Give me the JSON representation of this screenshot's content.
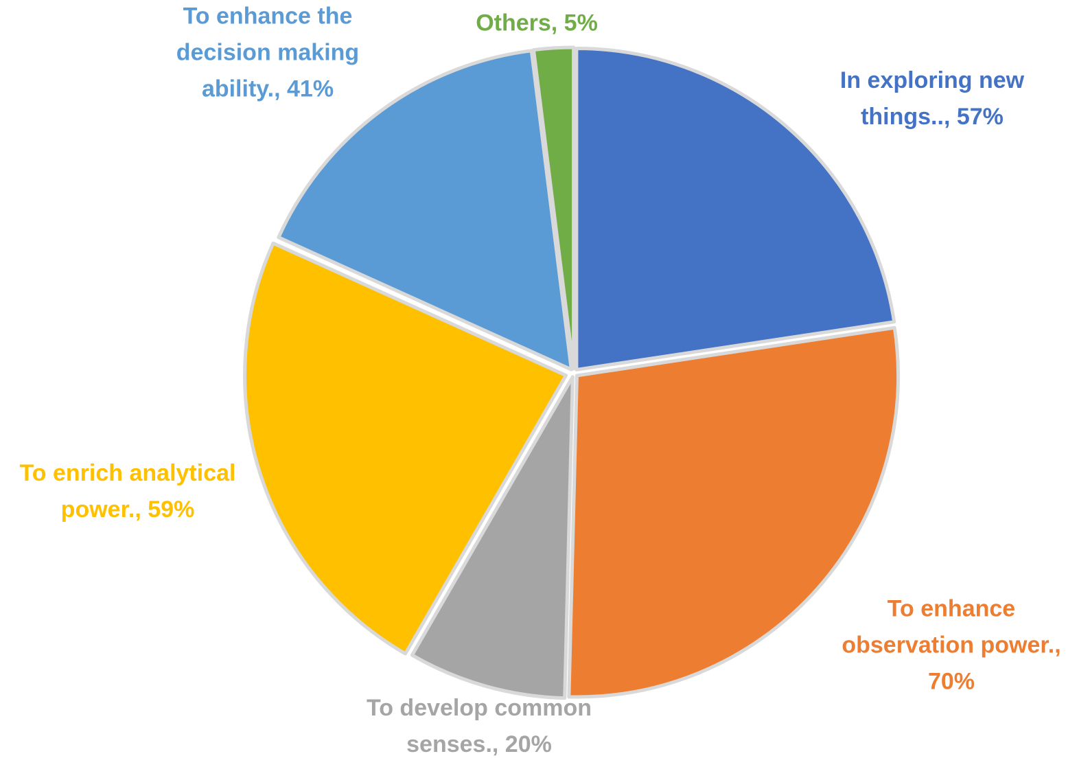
{
  "chart_data": {
    "type": "pie",
    "title": "",
    "slices": [
      {
        "name": "In exploring new things.",
        "value": 57,
        "color": "#4472C4",
        "label_lines": [
          "In exploring new",
          "things.., 57%"
        ]
      },
      {
        "name": "To enhance observation power.",
        "value": 70,
        "color": "#ED7D31",
        "label_lines": [
          "To enhance",
          "observation power.,",
          "70%"
        ]
      },
      {
        "name": "To develop common senses.",
        "value": 20,
        "color": "#A5A5A5",
        "label_lines": [
          "To develop common",
          "senses., 20%"
        ]
      },
      {
        "name": "To enrich analytical power.",
        "value": 59,
        "color": "#FFC000",
        "label_lines": [
          "To enrich analytical",
          "power., 59%"
        ]
      },
      {
        "name": "To enhance the decision making ability.",
        "value": 41,
        "color": "#5B9BD5",
        "label_lines": [
          "To enhance the",
          "decision making",
          "ability., 41%"
        ]
      },
      {
        "name": "Others",
        "value": 5,
        "color": "#70AD47",
        "label_lines": [
          "Others, 5%"
        ]
      }
    ],
    "start_angle_deg": 0,
    "direction": "clockwise",
    "legend": "none",
    "separator_color": "#D9D9D9"
  }
}
